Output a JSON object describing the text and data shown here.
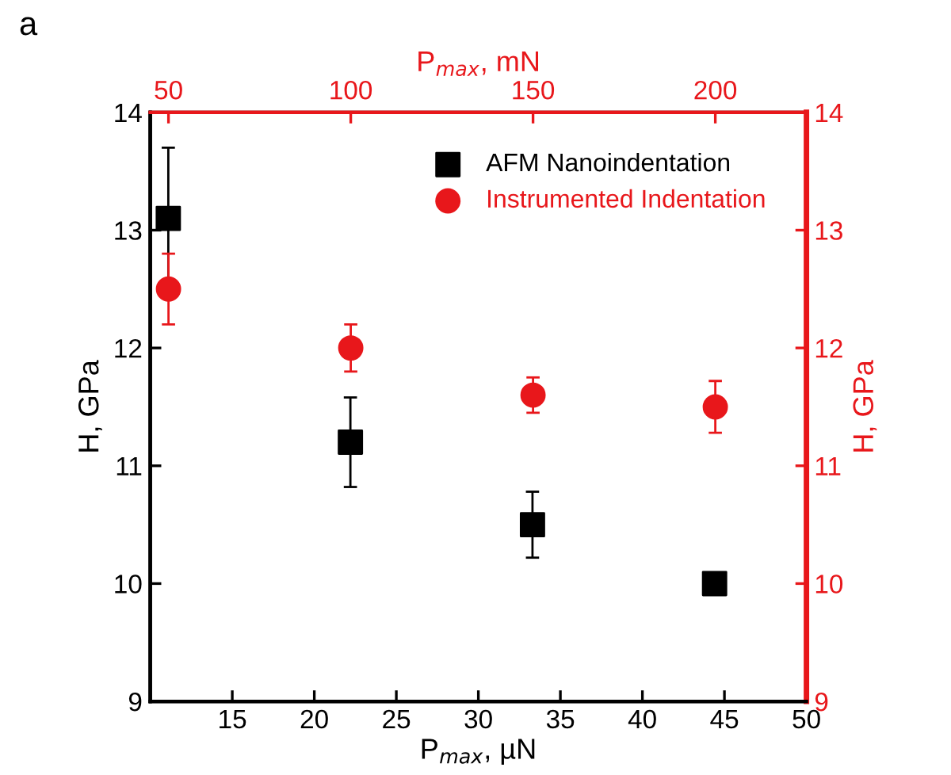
{
  "chart_data": {
    "type": "scatter",
    "xlabel": "P$_{max}$, µN",
    "x2label": "P$_{max}$, mN",
    "ylabel": "H, GPa",
    "y2label": "H, GPa",
    "xlim": [
      10,
      50
    ],
    "xticks": [
      {
        "value": 10,
        "label": null
      },
      15,
      20,
      25,
      30,
      35,
      40,
      45,
      50
    ],
    "x2lim": [
      45,
      225
    ],
    "x2ticks": [
      50,
      100,
      150,
      200
    ],
    "ylim": [
      9,
      14
    ],
    "yticks": [
      9,
      10,
      11,
      12,
      13,
      14
    ],
    "y2lim": [
      9,
      14
    ],
    "y2ticks": [
      9,
      10,
      11,
      12,
      13,
      14
    ],
    "legend": "top right",
    "grid": false,
    "annotations": [
      "a"
    ],
    "series": [
      {
        "name": "AFM Nanoindentation",
        "color": "#000000",
        "marker": "square",
        "x": [
          11.1,
          22.2,
          33.3,
          44.4
        ],
        "values": [
          13.1,
          11.2,
          10.5,
          10.0
        ],
        "errors": [
          0.6,
          0.38,
          0.28,
          null
        ]
      },
      {
        "name": "Instrumented Indentation",
        "color": "#e8171b",
        "marker": "circle",
        "axis": "x2",
        "x": [
          50,
          100,
          150,
          200
        ],
        "values": [
          12.5,
          12.0,
          11.6,
          11.5
        ],
        "errors": [
          0.3,
          0.2,
          0.15,
          0.22
        ]
      }
    ]
  }
}
